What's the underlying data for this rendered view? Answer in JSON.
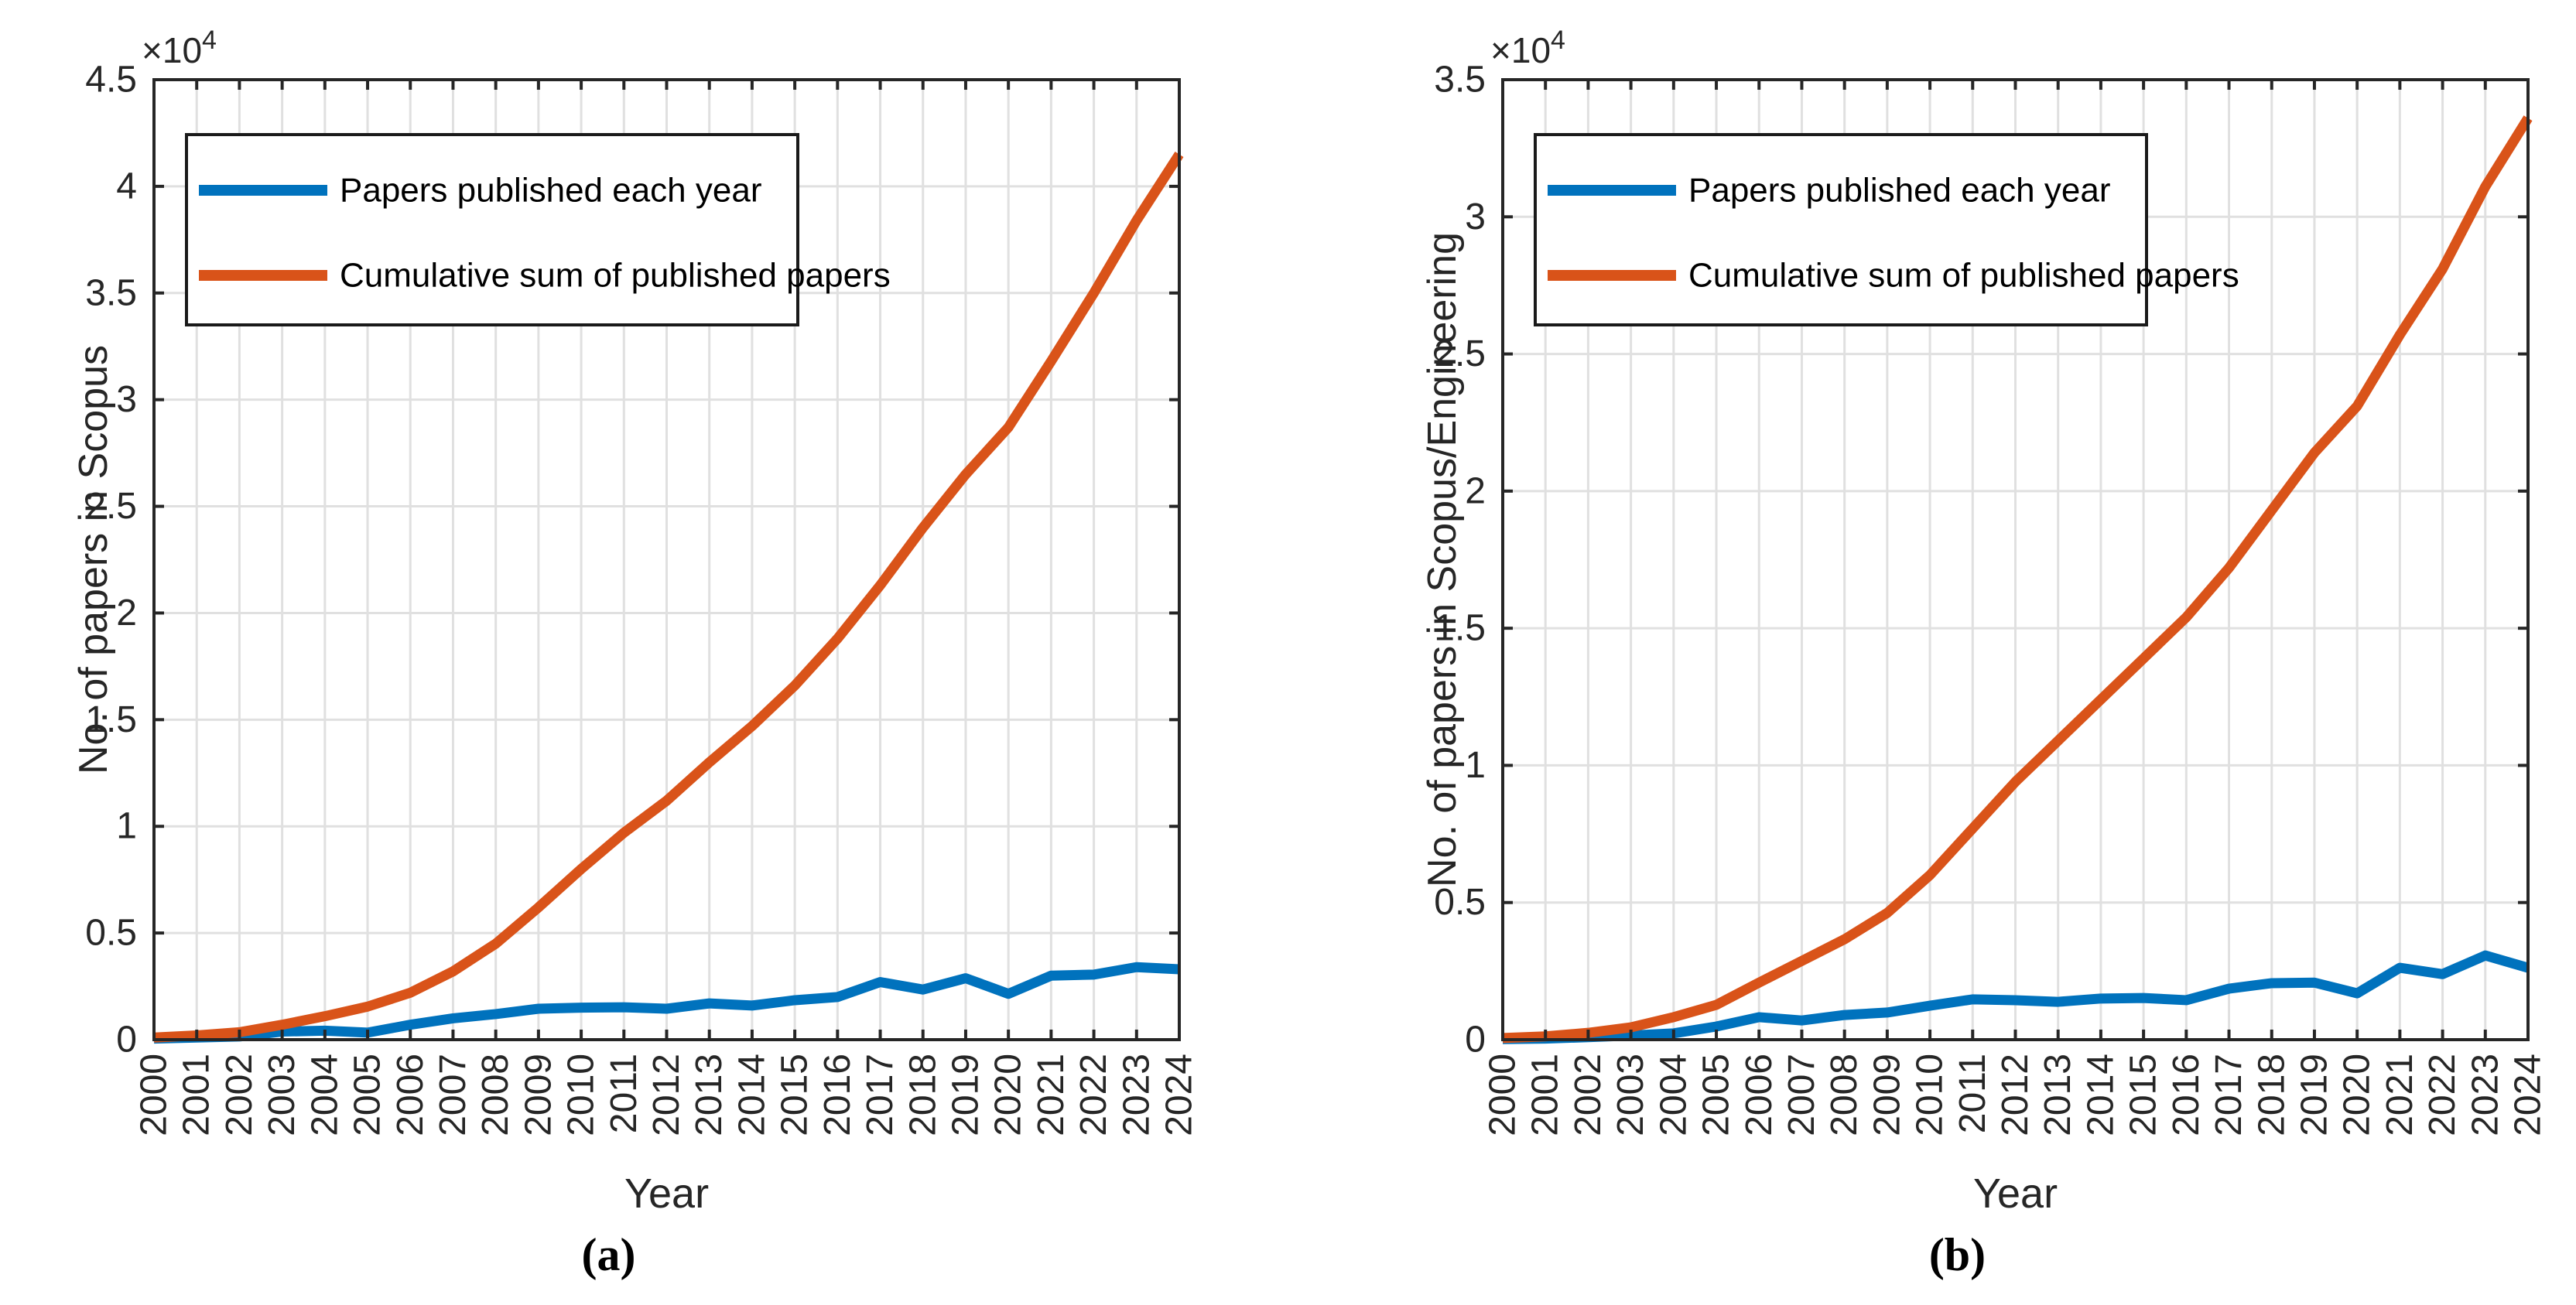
{
  "figure": {
    "background": "#FFFFFF",
    "axis_color": "#262626",
    "grid_color": "#E0E0E0",
    "text_color": "#262626"
  },
  "chart_data": [
    {
      "type": "line",
      "caption": "(a)",
      "xlabel": "Year",
      "ylabel": "No. of papers in Scopus",
      "y_exponent_base": "×10",
      "y_exponent": "4",
      "grid": true,
      "legend_position": "top-left",
      "xlim": [
        2000,
        2024
      ],
      "ylim": [
        0,
        45000
      ],
      "ytick_step": 5000,
      "ytick_labels": [
        "0",
        "0.5",
        "1",
        "1.5",
        "2",
        "2.5",
        "3",
        "3.5",
        "4",
        "4.5"
      ],
      "x": [
        2000,
        2001,
        2002,
        2003,
        2004,
        2005,
        2006,
        2007,
        2008,
        2009,
        2010,
        2011,
        2012,
        2013,
        2014,
        2015,
        2016,
        2017,
        2018,
        2019,
        2020,
        2021,
        2022,
        2023,
        2024
      ],
      "series": [
        {
          "name": "Papers published each year",
          "color": "#0072BD",
          "values": [
            50,
            100,
            150,
            380,
            420,
            330,
            700,
            1000,
            1200,
            1450,
            1500,
            1520,
            1450,
            1700,
            1600,
            1850,
            2000,
            2700,
            2350,
            2880,
            2150,
            3000,
            3050,
            3400,
            3300
          ]
        },
        {
          "name": "Cumulative sum of published papers",
          "color": "#D95319",
          "values": [
            100,
            200,
            350,
            700,
            1100,
            1550,
            2200,
            3200,
            4500,
            6200,
            8000,
            9700,
            11200,
            13000,
            14700,
            16600,
            18800,
            21300,
            24000,
            26500,
            28700,
            31800,
            35000,
            38400,
            41500
          ]
        }
      ]
    },
    {
      "type": "line",
      "caption": "(b)",
      "xlabel": "Year",
      "ylabel": "No. of papers in Scopus/Engineering",
      "y_exponent_base": "×10",
      "y_exponent": "4",
      "grid": true,
      "legend_position": "top-left",
      "xlim": [
        2000,
        2024
      ],
      "ylim": [
        0,
        35000
      ],
      "ytick_step": 5000,
      "ytick_labels": [
        "0",
        "0.5",
        "1",
        "1.5",
        "2",
        "2.5",
        "3",
        "3.5"
      ],
      "x": [
        2000,
        2001,
        2002,
        2003,
        2004,
        2005,
        2006,
        2007,
        2008,
        2009,
        2010,
        2011,
        2012,
        2013,
        2014,
        2015,
        2016,
        2017,
        2018,
        2019,
        2020,
        2021,
        2022,
        2023,
        2024
      ],
      "series": [
        {
          "name": "Papers published each year",
          "color": "#0072BD",
          "values": [
            20,
            40,
            90,
            150,
            230,
            480,
            820,
            700,
            900,
            990,
            1240,
            1470,
            1440,
            1380,
            1500,
            1520,
            1440,
            1860,
            2060,
            2080,
            1690,
            2620,
            2390,
            3070,
            2620
          ]
        },
        {
          "name": "Cumulative sum of published papers",
          "color": "#D95319",
          "values": [
            60,
            120,
            250,
            450,
            820,
            1270,
            2080,
            2870,
            3660,
            4620,
            6000,
            7700,
            9400,
            10900,
            12400,
            13900,
            15400,
            17200,
            19300,
            21400,
            23100,
            25700,
            28100,
            31100,
            33600
          ]
        }
      ]
    }
  ]
}
